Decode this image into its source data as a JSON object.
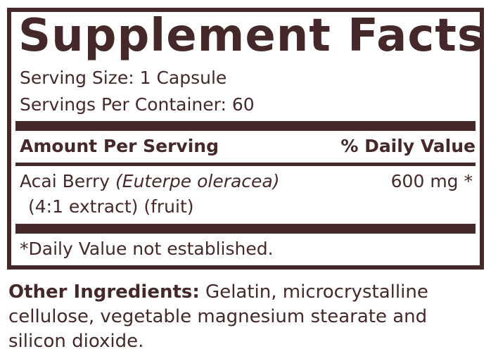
{
  "title": "Supplement Facts",
  "serving_size": "Serving Size: 1 Capsule",
  "servings_per_container": "Servings Per Container: 60",
  "header": {
    "amount": "Amount Per Serving",
    "dv": "% Daily Value"
  },
  "ingredient": {
    "name": "Acai Berry",
    "latin": "(Euterpe oleracea)",
    "amount": "600 mg",
    "dv": "*",
    "detail": "(4:1 extract) (fruit)"
  },
  "footnote": "*Daily Value not established.",
  "other": {
    "label": "Other Ingredients:",
    "line1": " Gelatin, microcrystalline",
    "line2": "cellulose, vegetable magnesium stearate and",
    "line3": "silicon dioxide."
  },
  "colors": {
    "text": "#45292a"
  }
}
